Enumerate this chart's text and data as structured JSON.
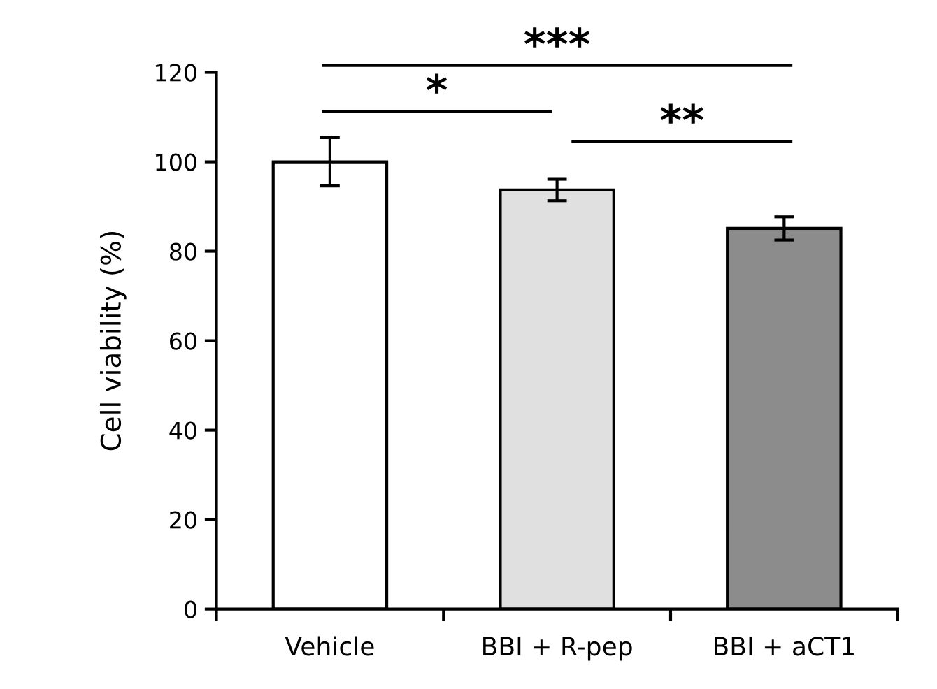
{
  "chart_data": {
    "type": "bar",
    "ylabel": "Cell viability (%)",
    "categories": [
      "Vehicle",
      "BBI + R-pep",
      "BBI + aCT1"
    ],
    "values": [
      100,
      93.7,
      85.1
    ],
    "colors": [
      "#ffffff",
      "#e0e0e0",
      "#8c8c8c"
    ],
    "errors": [
      5.4,
      2.4,
      2.6
    ],
    "ylim": [
      0,
      120
    ],
    "yticks": [
      0,
      20,
      40,
      60,
      80,
      100,
      120
    ],
    "grid": false,
    "legend": false,
    "annotations": [
      "***",
      "*",
      "**"
    ]
  }
}
